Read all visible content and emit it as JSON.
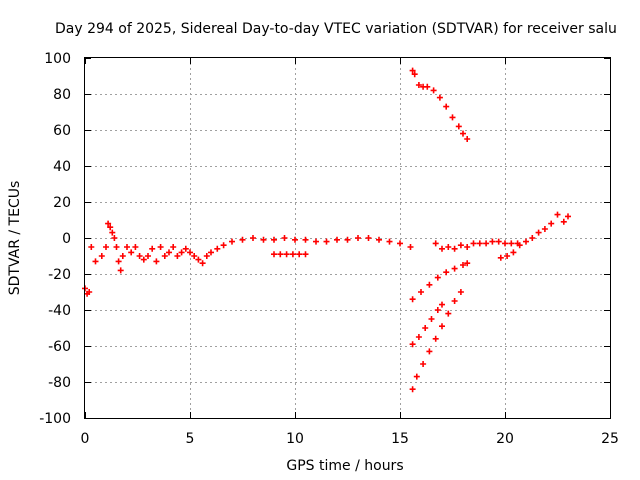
{
  "chart_data": {
    "type": "scatter",
    "title": "Day 294 of 2025, Sidereal Day-to-day VTEC variation (SDTVAR) for receiver salu",
    "xlabel": "GPS time / hours",
    "ylabel": "SDTVAR / TECUs",
    "xlim": [
      0,
      25
    ],
    "ylim": [
      -100,
      100
    ],
    "xticks": [
      "0",
      "5",
      "10",
      "15",
      "20",
      "25"
    ],
    "yticks": [
      "-100",
      "-80",
      "-60",
      "-40",
      "-20",
      "0",
      "20",
      "40",
      "60",
      "80",
      "100"
    ],
    "grid": true,
    "marker": "+",
    "series_color": "#ff0000",
    "series": [
      {
        "x": [
          0.0,
          0.1,
          0.2,
          0.3,
          0.5,
          0.8,
          1.0,
          1.1,
          1.2,
          1.3,
          1.4,
          1.5,
          1.6,
          1.7,
          1.8,
          2.0,
          2.2,
          2.4,
          2.6,
          2.8,
          3.0,
          3.2,
          3.4,
          3.6,
          3.8,
          4.0,
          4.2,
          4.4,
          4.6,
          4.8,
          5.0,
          5.2,
          5.4,
          5.6,
          5.8,
          6.0,
          6.3,
          6.6,
          7.0,
          7.5,
          8.0,
          8.5,
          9.0,
          9.5,
          10.0,
          10.5,
          11.0,
          11.5,
          12.0,
          12.5,
          13.0,
          13.5,
          14.0,
          14.5,
          15.0,
          15.5
        ],
        "y": [
          -28,
          -31,
          -30,
          -5,
          -13,
          -10,
          -5,
          8,
          6,
          3,
          0,
          -5,
          -13,
          -18,
          -10,
          -5,
          -8,
          -5,
          -10,
          -12,
          -10,
          -6,
          -13,
          -5,
          -10,
          -8,
          -5,
          -10,
          -8,
          -6,
          -8,
          -10,
          -12,
          -14,
          -10,
          -8,
          -6,
          -4,
          -2,
          -1,
          0,
          -1,
          -1,
          0,
          -1,
          -1,
          -2,
          -2,
          -1,
          -1,
          0,
          0,
          -1,
          -2,
          -3,
          -5
        ]
      },
      {
        "x": [
          9.0,
          9.3,
          9.6,
          9.9,
          10.2,
          10.5
        ],
        "y": [
          -9,
          -9,
          -9,
          -9,
          -9,
          -9
        ]
      },
      {
        "x": [
          15.6,
          15.7,
          15.9,
          16.1,
          16.3,
          16.6,
          16.9,
          17.2,
          17.5,
          17.8,
          18.0,
          18.2
        ],
        "y": [
          93,
          91,
          85,
          84,
          84,
          82,
          78,
          73,
          67,
          62,
          58,
          55
        ]
      },
      {
        "x": [
          15.6,
          16.0,
          16.4,
          16.8,
          17.2,
          17.6,
          18.0,
          18.2
        ],
        "y": [
          -34,
          -30,
          -26,
          -22,
          -19,
          -17,
          -15,
          -14
        ]
      },
      {
        "x": [
          15.6,
          15.9,
          16.2,
          16.5,
          16.8,
          17.0
        ],
        "y": [
          -59,
          -55,
          -50,
          -45,
          -40,
          -37
        ]
      },
      {
        "x": [
          15.6,
          15.8,
          16.1,
          16.4,
          16.7,
          17.0,
          17.3,
          17.6,
          17.9
        ],
        "y": [
          -84,
          -77,
          -70,
          -63,
          -56,
          -49,
          -42,
          -35,
          -30
        ]
      },
      {
        "x": [
          16.7,
          17.0,
          17.3,
          17.6,
          17.9,
          18.2,
          18.5,
          18.8,
          19.1,
          19.4,
          19.7,
          20.0,
          20.3,
          20.6
        ],
        "y": [
          -3,
          -6,
          -5,
          -6,
          -4,
          -5,
          -3,
          -3,
          -3,
          -2,
          -2,
          -3,
          -3,
          -3
        ]
      },
      {
        "x": [
          19.8,
          20.1,
          20.4,
          20.7,
          21.0,
          21.3,
          21.6,
          21.9,
          22.2,
          22.5,
          22.8,
          23.0
        ],
        "y": [
          -11,
          -10,
          -8,
          -4,
          -2,
          0,
          3,
          5,
          8,
          13,
          9,
          12
        ]
      }
    ]
  }
}
